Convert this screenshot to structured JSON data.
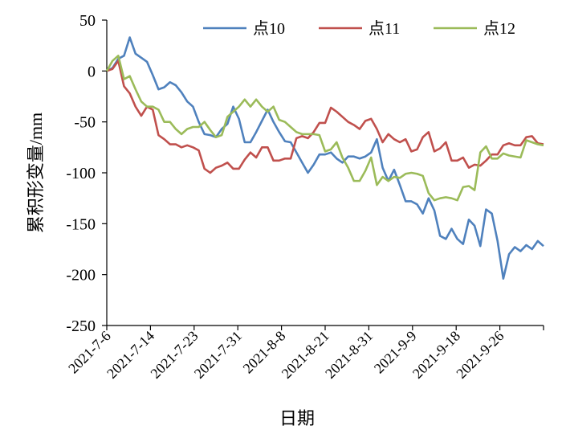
{
  "chart_data": {
    "type": "line",
    "title": "",
    "xlabel": "日期",
    "ylabel": "累积形变量/mm",
    "ylim": [
      -250,
      50
    ],
    "yticks": [
      50,
      0,
      -50,
      -100,
      -150,
      -200,
      -250
    ],
    "xtick_labels": [
      "2021-7-6",
      "2021-7-14",
      "2021-7-23",
      "2021-7-31",
      "2021-8-8",
      "2021-8-21",
      "2021-8-31",
      "2021-9-9",
      "2021-9-18",
      "2021-9-26"
    ],
    "grid": false,
    "legend_position": "top",
    "series": [
      {
        "name": "点10",
        "color": "#4F81BD",
        "values": [
          0,
          3,
          12,
          15,
          33,
          17,
          13,
          9,
          -4,
          -18,
          -16,
          -11,
          -14,
          -21,
          -30,
          -35,
          -50,
          -62,
          -63,
          -65,
          -57,
          -52,
          -35,
          -47,
          -70,
          -70,
          -60,
          -49,
          -38,
          -50,
          -60,
          -69,
          -70,
          -80,
          -90,
          -100,
          -92,
          -82,
          -82,
          -80,
          -86,
          -90,
          -84,
          -84,
          -86,
          -84,
          -80,
          -67,
          -95,
          -108,
          -97,
          -112,
          -128,
          -128,
          -131,
          -140,
          -125,
          -137,
          -162,
          -165,
          -155,
          -165,
          -170,
          -146,
          -152,
          -172,
          -136,
          -140,
          -167,
          -204,
          -180,
          -173,
          -177,
          -171,
          -175,
          -167,
          -172
        ]
      },
      {
        "name": "点11",
        "color": "#C0504D",
        "values": [
          0,
          2,
          10,
          -15,
          -22,
          -35,
          -44,
          -35,
          -38,
          -63,
          -67,
          -72,
          -72,
          -75,
          -73,
          -75,
          -78,
          -96,
          -100,
          -95,
          -93,
          -90,
          -96,
          -96,
          -87,
          -80,
          -85,
          -75,
          -75,
          -88,
          -88,
          -86,
          -86,
          -66,
          -64,
          -66,
          -60,
          -51,
          -51,
          -36,
          -40,
          -45,
          -50,
          -53,
          -57,
          -49,
          -47,
          -57,
          -70,
          -62,
          -67,
          -70,
          -67,
          -79,
          -77,
          -65,
          -60,
          -79,
          -76,
          -70,
          -88,
          -88,
          -85,
          -95,
          -92,
          -93,
          -88,
          -82,
          -82,
          -73,
          -71,
          -73,
          -73,
          -65,
          -64,
          -71,
          -72
        ]
      },
      {
        "name": "点12",
        "color": "#9BBB59",
        "values": [
          0,
          10,
          15,
          -8,
          -5,
          -18,
          -30,
          -35,
          -35,
          -38,
          -50,
          -50,
          -57,
          -62,
          -57,
          -55,
          -55,
          -50,
          -58,
          -65,
          -63,
          -45,
          -40,
          -35,
          -28,
          -35,
          -28,
          -35,
          -40,
          -35,
          -48,
          -50,
          -55,
          -60,
          -62,
          -62,
          -62,
          -63,
          -79,
          -77,
          -70,
          -85,
          -95,
          -108,
          -108,
          -98,
          -85,
          -112,
          -104,
          -108,
          -104,
          -105,
          -101,
          -100,
          -101,
          -103,
          -120,
          -127,
          -125,
          -124,
          -125,
          -127,
          -114,
          -113,
          -117,
          -80,
          -74,
          -86,
          -86,
          -81,
          -83,
          -84,
          -85,
          -68,
          -70,
          -72,
          -73
        ]
      }
    ]
  }
}
